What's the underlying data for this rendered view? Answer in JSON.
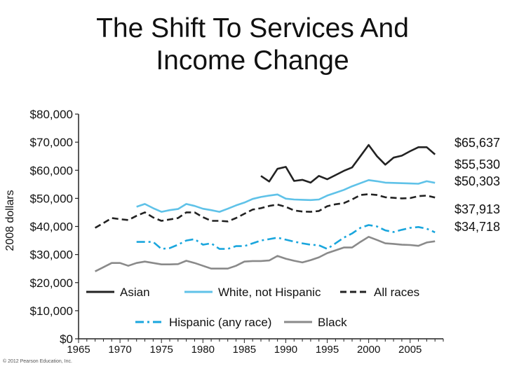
{
  "slide": {
    "title_line1": "The Shift To Services And",
    "title_line2": "Income Change",
    "copyright": "© 2012 Pearson Education, Inc."
  },
  "chart_data": {
    "type": "line",
    "title": "",
    "xlabel": "",
    "ylabel": "2008 dollars",
    "xlim": [
      1965,
      2009
    ],
    "ylim": [
      0,
      80000
    ],
    "x_ticks": [
      1965,
      1970,
      1975,
      1980,
      1985,
      1990,
      1995,
      2000,
      2005
    ],
    "x_tick_labels": [
      "1965",
      "1970",
      "1975",
      "1980",
      "1985",
      "1990",
      "1995",
      "2000",
      "2005"
    ],
    "y_ticks": [
      0,
      10000,
      20000,
      30000,
      40000,
      50000,
      60000,
      70000,
      80000
    ],
    "y_tick_labels": [
      "$0",
      "$10,000",
      "$20,000",
      "$30,000",
      "$40,000",
      "$50,000",
      "$60,000",
      "$70,000",
      "$80,000"
    ],
    "grid": false,
    "legend_position": "inside-bottom",
    "end_labels": [
      "$65,637",
      "$55,530",
      "$50,303",
      "$37,913",
      "$34,718"
    ],
    "series": [
      {
        "name": "Asian",
        "color": "#222222",
        "dash": "solid",
        "x": [
          1987,
          1988,
          1989,
          1990,
          1991,
          1992,
          1993,
          1994,
          1995,
          1996,
          1997,
          1998,
          1999,
          2000,
          2001,
          2002,
          2003,
          2004,
          2005,
          2006,
          2007,
          2008
        ],
        "values": [
          58000,
          56000,
          60500,
          61200,
          56200,
          56600,
          55600,
          58000,
          56800,
          58300,
          59800,
          61000,
          65000,
          69000,
          65000,
          62000,
          64500,
          65200,
          66800,
          68200,
          68200,
          65637
        ]
      },
      {
        "name": "White, not Hispanic",
        "color": "#5fc2e8",
        "dash": "solid",
        "x": [
          1972,
          1973,
          1974,
          1975,
          1976,
          1977,
          1978,
          1979,
          1980,
          1981,
          1982,
          1983,
          1984,
          1985,
          1986,
          1987,
          1988,
          1989,
          1990,
          1991,
          1992,
          1993,
          1994,
          1995,
          1996,
          1997,
          1998,
          1999,
          2000,
          2001,
          2002,
          2003,
          2004,
          2005,
          2006,
          2007,
          2008
        ],
        "values": [
          47000,
          48000,
          46500,
          45200,
          45800,
          46200,
          48000,
          47300,
          46300,
          45800,
          45200,
          46300,
          47500,
          48500,
          49800,
          50500,
          51000,
          51400,
          49900,
          49600,
          49500,
          49400,
          49600,
          51000,
          52000,
          53000,
          54300,
          55400,
          56500,
          56100,
          55600,
          55500,
          55400,
          55300,
          55200,
          56100,
          55530
        ]
      },
      {
        "name": "All races",
        "color": "#222222",
        "dash": "dashed",
        "x": [
          1967,
          1968,
          1969,
          1970,
          1971,
          1972,
          1973,
          1974,
          1975,
          1976,
          1977,
          1978,
          1979,
          1980,
          1981,
          1982,
          1983,
          1984,
          1985,
          1986,
          1987,
          1988,
          1989,
          1990,
          1991,
          1992,
          1993,
          1994,
          1995,
          1996,
          1997,
          1998,
          1999,
          2000,
          2001,
          2002,
          2003,
          2004,
          2005,
          2006,
          2007,
          2008
        ],
        "values": [
          39500,
          41200,
          43000,
          42600,
          42300,
          43800,
          45000,
          43200,
          42000,
          42500,
          43000,
          45000,
          45000,
          43300,
          42000,
          42000,
          41800,
          43000,
          44500,
          46000,
          46500,
          47300,
          47800,
          47000,
          45700,
          45300,
          45200,
          45500,
          47200,
          47900,
          48300,
          49600,
          51200,
          51500,
          51200,
          50400,
          50200,
          50000,
          50100,
          50800,
          51000,
          50303
        ]
      },
      {
        "name": "Hispanic (any race)",
        "color": "#1aa6dd",
        "dash": "dashdot",
        "x": [
          1972,
          1973,
          1974,
          1975,
          1976,
          1977,
          1978,
          1979,
          1980,
          1981,
          1982,
          1983,
          1984,
          1985,
          1986,
          1987,
          1988,
          1989,
          1990,
          1991,
          1992,
          1993,
          1994,
          1995,
          1996,
          1997,
          1998,
          1999,
          2000,
          2001,
          2002,
          2003,
          2004,
          2005,
          2006,
          2007,
          2008
        ],
        "values": [
          34500,
          34500,
          34500,
          32000,
          32300,
          33500,
          35000,
          35500,
          33500,
          34000,
          32000,
          32000,
          33000,
          33000,
          34000,
          35000,
          35500,
          36000,
          35300,
          34600,
          34000,
          33500,
          33300,
          32000,
          34000,
          36000,
          37500,
          39500,
          40500,
          40000,
          38600,
          38000,
          38800,
          39500,
          39800,
          39200,
          37913
        ]
      },
      {
        "name": "Black",
        "color": "#8a8a8a",
        "dash": "solid",
        "x": [
          1967,
          1968,
          1969,
          1970,
          1971,
          1972,
          1973,
          1974,
          1975,
          1976,
          1977,
          1978,
          1979,
          1980,
          1981,
          1982,
          1983,
          1984,
          1985,
          1986,
          1987,
          1988,
          1989,
          1990,
          1991,
          1992,
          1993,
          1994,
          1995,
          1996,
          1997,
          1998,
          1999,
          2000,
          2001,
          2002,
          2003,
          2004,
          2005,
          2006,
          2007,
          2008
        ],
        "values": [
          24000,
          25500,
          27000,
          27000,
          26000,
          27000,
          27500,
          27000,
          26500,
          26500,
          26600,
          27800,
          27000,
          26000,
          25000,
          25000,
          25000,
          26000,
          27500,
          27700,
          27700,
          27900,
          29500,
          28500,
          27800,
          27200,
          28000,
          29000,
          30500,
          31500,
          32500,
          32500,
          34500,
          36300,
          35200,
          34000,
          33800,
          33500,
          33400,
          33100,
          34300,
          34718
        ]
      }
    ]
  }
}
